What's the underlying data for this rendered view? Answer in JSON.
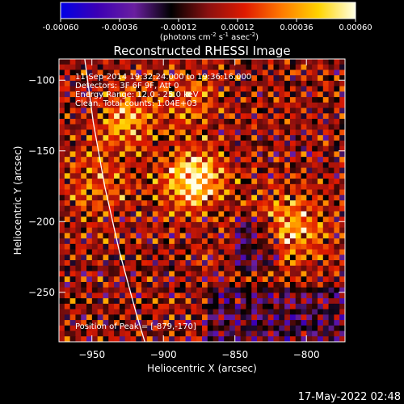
{
  "colorbar": {
    "ticks": [
      "-0.00060",
      "-0.00036",
      "-0.00012",
      "0.00012",
      "0.00036",
      "0.00060"
    ],
    "tick_values": [
      -0.0006,
      -0.00036,
      -0.00012,
      0.00012,
      0.00036,
      0.0006
    ],
    "range": [
      -0.0006,
      0.0006
    ],
    "units_prefix": "(photons cm",
    "units_sup1": "-2",
    "units_mid": " s",
    "units_sup2": "-1",
    "units_end": " asec",
    "units_sup3": "-2",
    "units_close": ")",
    "colors": [
      "#0000e6",
      "#3c00b4",
      "#6a1fa0",
      "#000000",
      "#8a1010",
      "#e01a00",
      "#ff7a00",
      "#ffd400",
      "#ffffe6"
    ]
  },
  "chart_data": {
    "type": "heatmap",
    "title": "Reconstructed RHESSI Image",
    "xlabel": "Heliocentric X (arcsec)",
    "ylabel": "Heliocentric Y (arcsec)",
    "xlim": [
      -973,
      -773
    ],
    "ylim": [
      -285,
      -85
    ],
    "x_ticks": [
      -950,
      -900,
      -850,
      -800
    ],
    "y_ticks": [
      -100,
      -150,
      -200,
      -250
    ],
    "x_tick_labels": [
      "−950",
      "−900",
      "−850",
      "−800"
    ],
    "y_tick_labels": [
      "−100",
      "−150",
      "−200",
      "−250"
    ],
    "grid": false,
    "limb": [
      [
        -955,
        -85
      ],
      [
        -949,
        -130
      ],
      [
        -941,
        -175
      ],
      [
        -931,
        -220
      ],
      [
        -919,
        -265
      ],
      [
        -913,
        -285
      ]
    ],
    "peak": [
      -879,
      -170
    ],
    "cmap": "rhessi_blue_black_red_yellow",
    "vmin": -0.0006,
    "vmax": 0.0006,
    "annotations": [
      "11-Sep-2014 19:32:24.000 to 19:36:16.000",
      "Detectors: 3F 6F 9F, Att 0",
      "Energy Range: 12.0 - 25.0 keV",
      "Clean.   Total counts: 1.04E+03",
      "Position of Peak = [-879,-170]"
    ]
  },
  "footer": {
    "timestamp": "17-May-2022 02:48"
  }
}
